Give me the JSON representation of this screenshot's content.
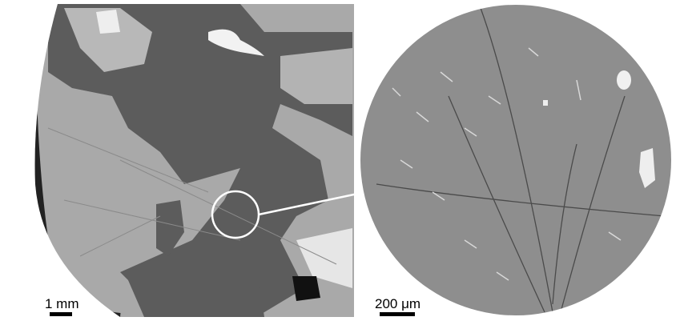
{
  "scale_bars": [
    {
      "label": "1 mm"
    },
    {
      "label": "200 μm"
    }
  ]
}
